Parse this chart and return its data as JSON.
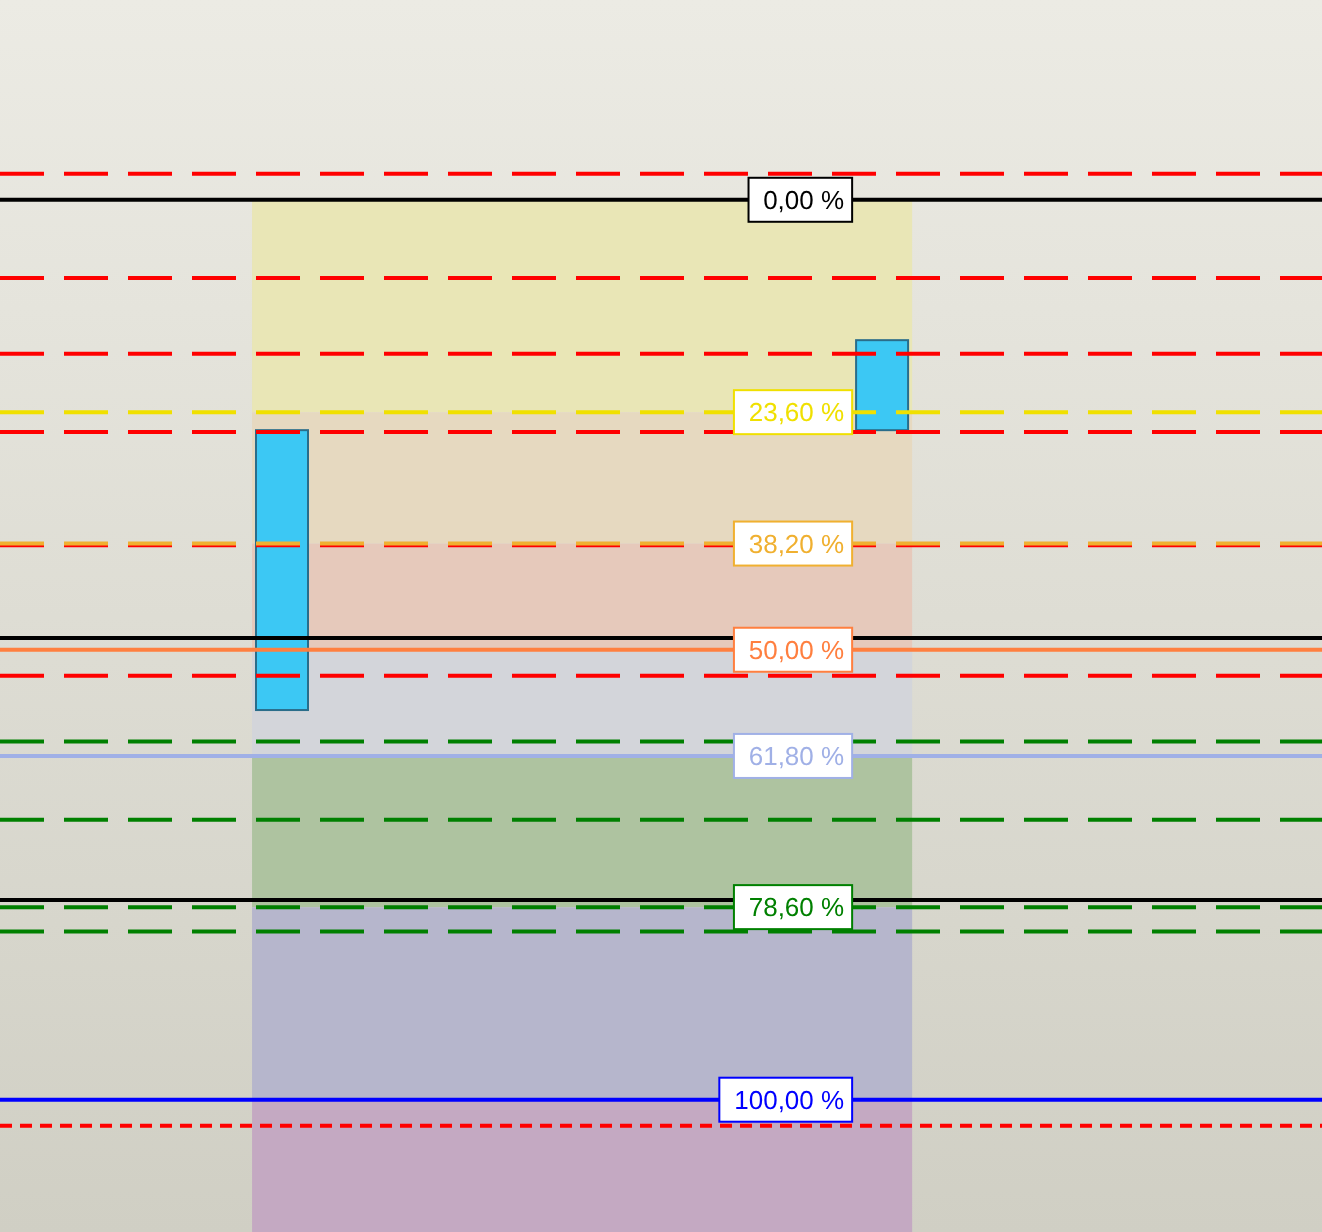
{
  "chart_data": {
    "type": "candlestick",
    "categories": [
      null,
      null
    ],
    "ohlc": [
      [
        56.7,
        56.7,
        25.6,
        25.6
      ],
      [
        25.6,
        25.6,
        15.6,
        15.6
      ]
    ],
    "color": "#3cc8f4",
    "ylim": [
      114.7,
      -22.2
    ],
    "yticks": [
      {
        "value": 0,
        "label": "0,00 %"
      },
      {
        "value": 23.6,
        "label": "23,60 %"
      },
      {
        "value": 38.2,
        "label": "38,20 %"
      },
      {
        "value": 50,
        "label": "50,00 %"
      },
      {
        "value": 61.8,
        "label": "61,80 %"
      },
      {
        "value": 78.6,
        "label": "78,60 %"
      },
      {
        "value": 100,
        "label": "100,00 %"
      }
    ],
    "grid": false,
    "legend": false,
    "bands": [
      {
        "axis": "y",
        "from": 0,
        "to": 23.6,
        "color": "#e9e6b6"
      },
      {
        "axis": "y",
        "from": 23.6,
        "to": 38.2,
        "color": "#e6d9c0"
      },
      {
        "axis": "y",
        "from": 38.2,
        "to": 50,
        "color": "#e6c9bb"
      },
      {
        "axis": "y",
        "from": 50,
        "to": 61.8,
        "color": "#d3d5da"
      },
      {
        "axis": "y",
        "from": 61.8,
        "to": 78.6,
        "color": "#aec3a0"
      },
      {
        "axis": "y",
        "from": 78.6,
        "to": 100,
        "color": "#b6b6cc"
      },
      {
        "axis": "y",
        "from": 100,
        "to": 114.7,
        "color": "#c4a9c2"
      }
    ],
    "ref_lines": [
      {
        "axis": "y",
        "value": 8.7,
        "color": "#ff0000",
        "line_style": "dashed"
      },
      {
        "axis": "y",
        "value": -2.9,
        "color": "#ff0000",
        "line_style": "dashed"
      },
      {
        "axis": "y",
        "value": 17.1,
        "color": "#ff0000",
        "line_style": "dashed"
      },
      {
        "axis": "y",
        "value": 25.8,
        "color": "#ff0000",
        "line_style": "dashed"
      },
      {
        "axis": "y",
        "value": 38.4,
        "color": "#ff0000",
        "line_style": "dashed"
      },
      {
        "axis": "y",
        "value": 52.9,
        "color": "#ff0000",
        "line_style": "dashed"
      },
      {
        "axis": "y",
        "value": 102.9,
        "color": "#ff0000",
        "line_style": "dotted"
      },
      {
        "axis": "y",
        "value": 60.2,
        "color": "#008000",
        "line_style": "dashed"
      },
      {
        "axis": "y",
        "value": 68.9,
        "color": "#008000",
        "line_style": "dashed"
      },
      {
        "axis": "y",
        "value": 81.3,
        "color": "#008000",
        "line_style": "dashed"
      },
      {
        "axis": "y",
        "value": 77.8,
        "color": "#000000",
        "line_style": "solid"
      },
      {
        "axis": "y",
        "value": 48.7,
        "color": "#000000",
        "line_style": "solid"
      },
      {
        "axis": "y",
        "value": 0,
        "color": "#000000",
        "line_style": "solid"
      },
      {
        "axis": "y",
        "value": 23.6,
        "color": "#f0e000",
        "line_style": "dashed"
      },
      {
        "axis": "y",
        "value": 38.2,
        "color": "#f0b030",
        "line_style": "dashed"
      },
      {
        "axis": "y",
        "value": 50,
        "color": "#ff7f3f",
        "line_style": "solid"
      },
      {
        "axis": "y",
        "value": 61.8,
        "color": "#a0b0e6",
        "line_style": "solid"
      },
      {
        "axis": "y",
        "value": 78.6,
        "color": "#008000",
        "line_style": "dashed"
      },
      {
        "axis": "y",
        "value": 100,
        "color": "#0000ff",
        "line_style": "solid"
      }
    ]
  }
}
